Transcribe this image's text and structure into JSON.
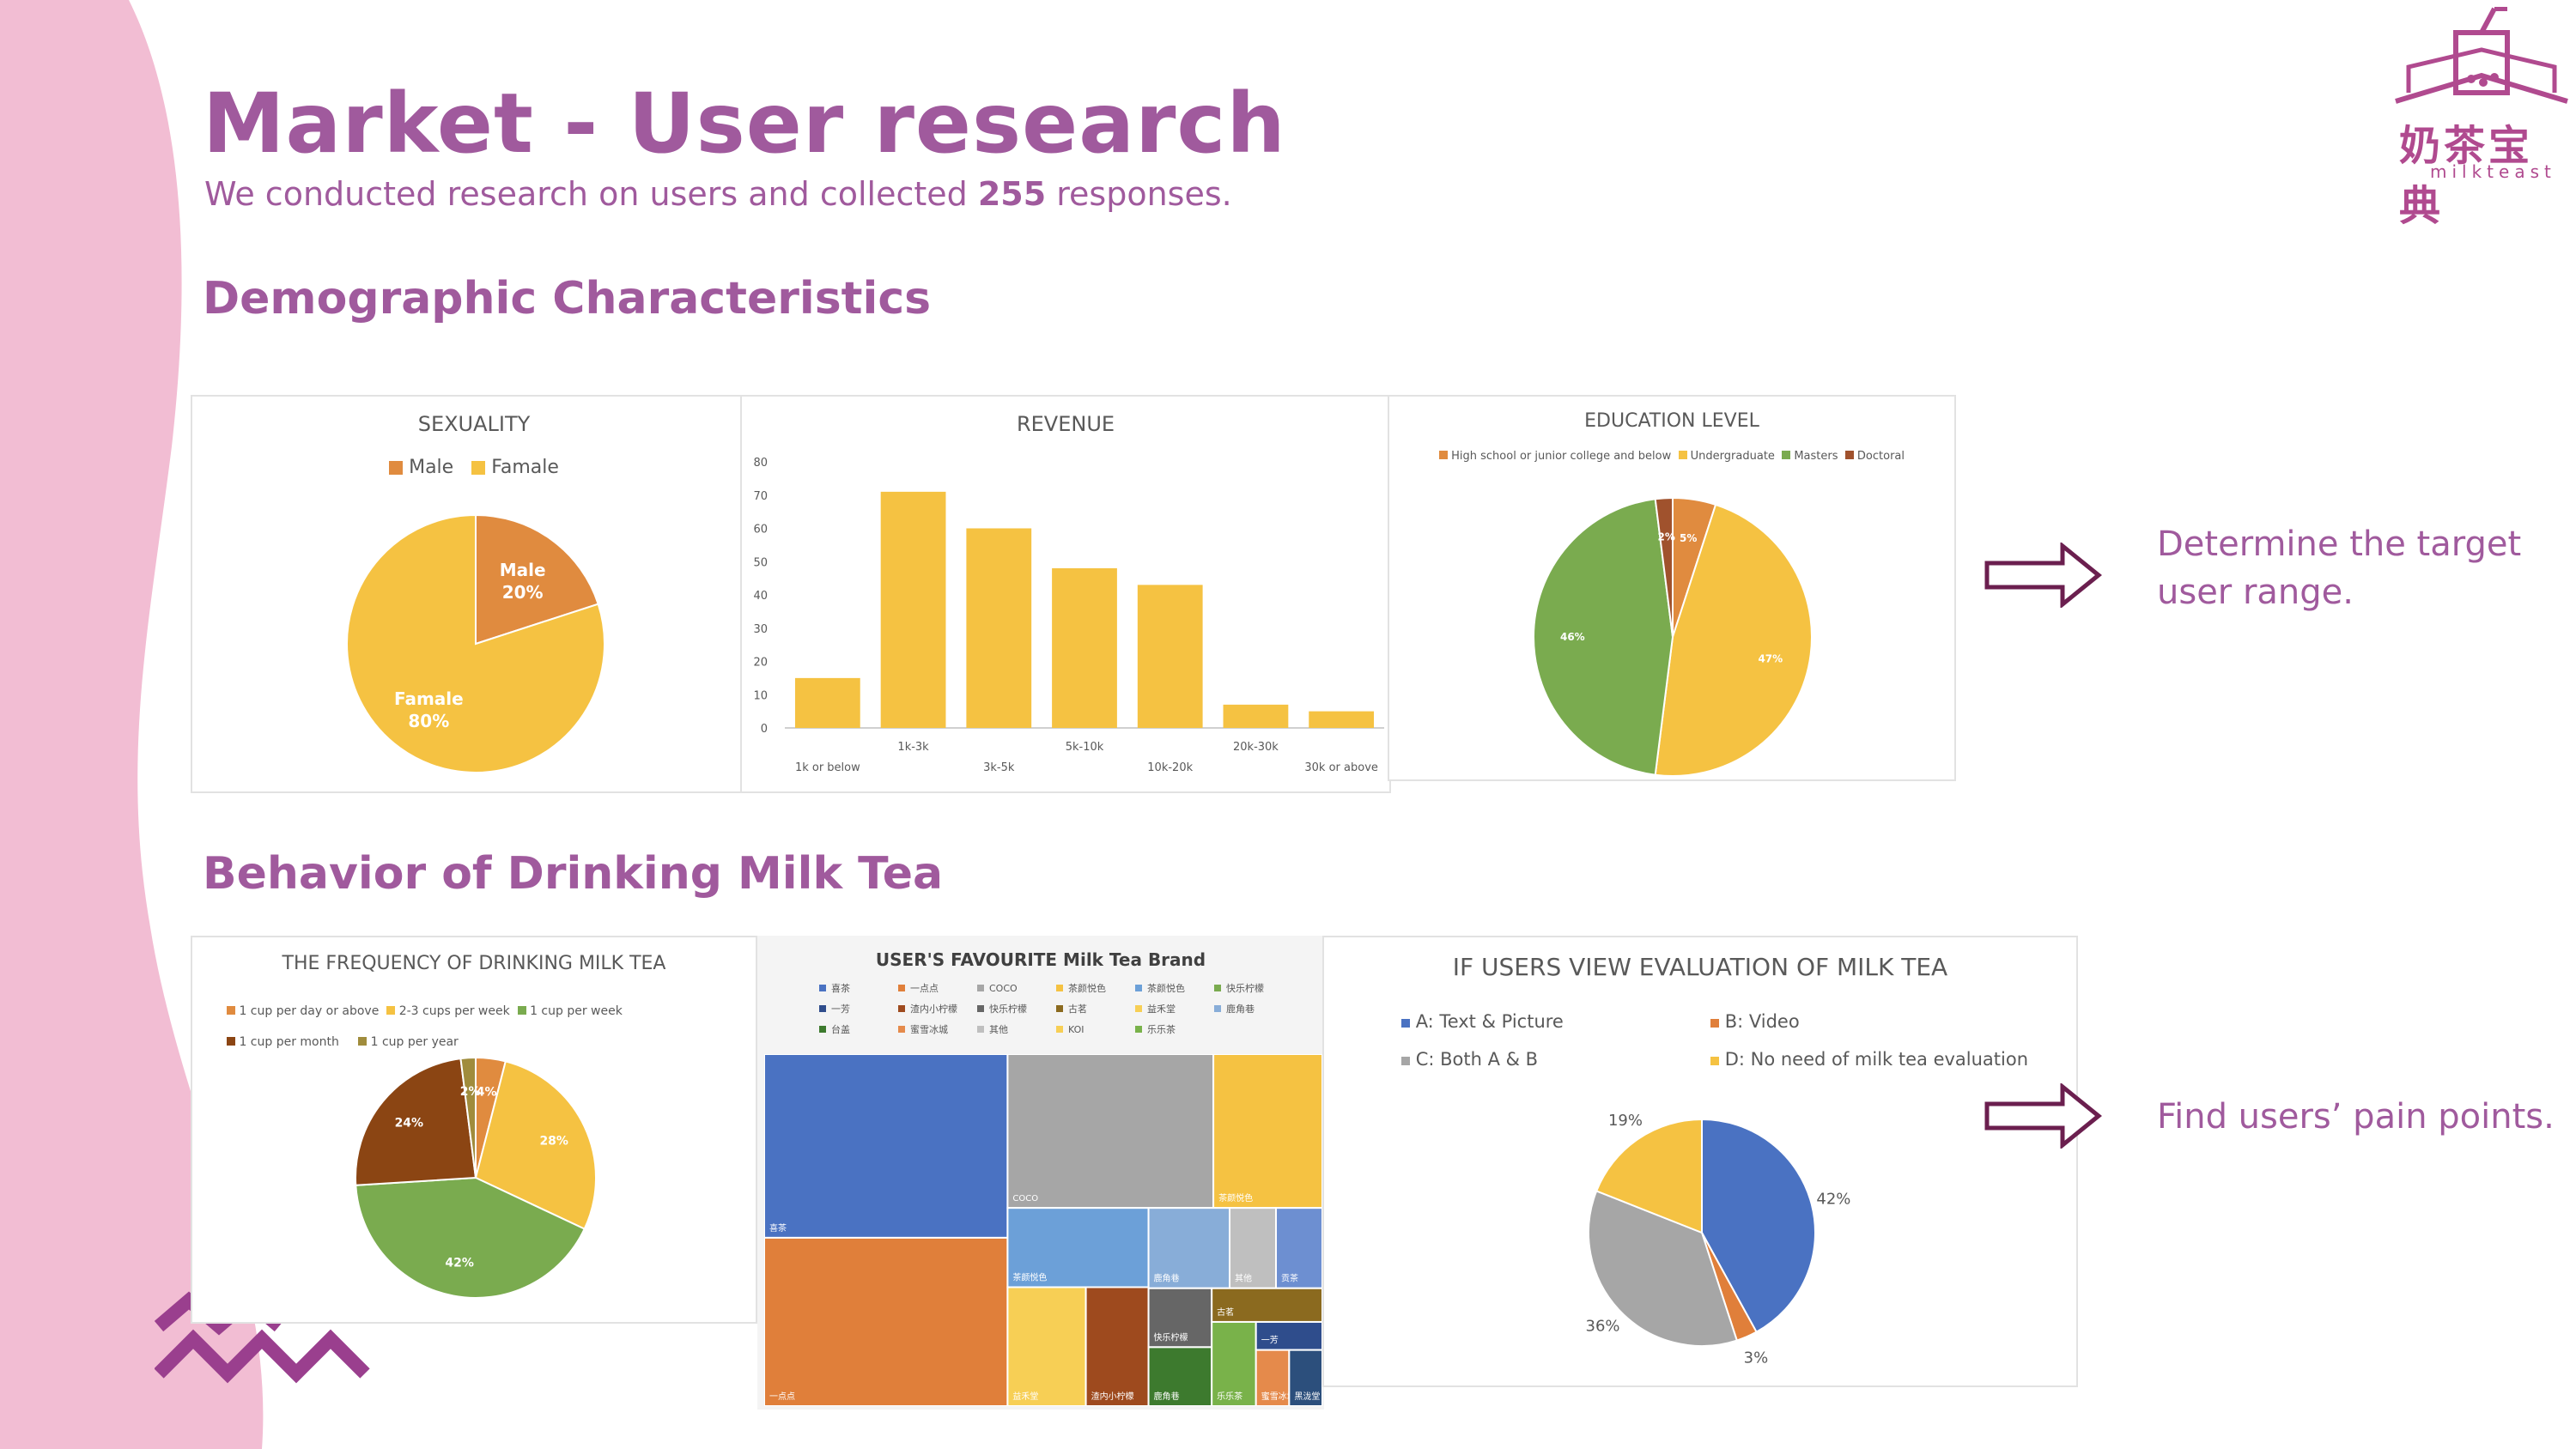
{
  "slide": {
    "title": "Market - User research",
    "subtitle_prefix": "We conducted research on users and collected ",
    "subtitle_count": "255",
    "subtitle_suffix": " responses.",
    "section1": "Demographic Characteristics",
    "section2": "Behavior of Drinking Milk Tea",
    "note1_line1": "Determine the target",
    "note1_line2": "user range.",
    "note2": "Find users’ pain points.",
    "logo_cn": "奶茶宝典",
    "logo_en": "milkteast",
    "colors": {
      "accent": "#a05a9d",
      "pink": "#f2bdd3"
    }
  },
  "chart_data": [
    {
      "type": "pie",
      "title": "SEXUALITY",
      "legend_position": "top",
      "slices": [
        {
          "name": "Male",
          "value": 20,
          "label": "20%",
          "color": "#e08b3f"
        },
        {
          "name": "Famale",
          "value": 80,
          "label": "80%",
          "color": "#f5c242"
        }
      ]
    },
    {
      "type": "bar",
      "title": "REVENUE",
      "categories": [
        "1k or below",
        "1k-3k",
        "3k-5k",
        "5k-10k",
        "10k-20k",
        "20k-30k",
        "30k or above"
      ],
      "values": [
        15,
        71,
        60,
        48,
        43,
        7,
        5
      ],
      "ylim": [
        0,
        80
      ],
      "yticks": [
        0,
        10,
        20,
        30,
        40,
        50,
        60,
        70,
        80
      ],
      "color": "#f5c242"
    },
    {
      "type": "pie",
      "title": "EDUCATION LEVEL",
      "legend_position": "top",
      "slices": [
        {
          "name": "High school or junior college and below",
          "value": 5,
          "label": "5%",
          "color": "#e08b3f"
        },
        {
          "name": "Undergraduate",
          "value": 47,
          "label": "47%",
          "color": "#f5c242"
        },
        {
          "name": "Masters",
          "value": 46,
          "label": "46%",
          "color": "#7aab4f"
        },
        {
          "name": "Doctoral",
          "value": 2,
          "label": "2%",
          "color": "#a0522d"
        }
      ]
    },
    {
      "type": "pie",
      "title": "THE FREQUENCY OF DRINKING MILK TEA",
      "legend_position": "top",
      "slices": [
        {
          "name": "1 cup per day or above",
          "value": 4,
          "label": "4%",
          "color": "#e08b3f"
        },
        {
          "name": "2-3 cups per week",
          "value": 28,
          "label": "28%",
          "color": "#f5c242"
        },
        {
          "name": "1 cup per week",
          "value": 42,
          "label": "42%",
          "color": "#7aab4f"
        },
        {
          "name": "1 cup per month",
          "value": 24,
          "label": "24%",
          "color": "#8b4513"
        },
        {
          "name": "1 cup per year",
          "value": 2,
          "label": "2%",
          "color": "#a08c3c"
        }
      ]
    },
    {
      "type": "treemap",
      "title": "USER'S FAVOURITE Milk Tea Brand",
      "legend_position": "top",
      "items": [
        {
          "name": "喜茶",
          "value": 48,
          "color": "#4a72c2",
          "label": "喜茶"
        },
        {
          "name": "一点点",
          "value": 44,
          "color": "#e07f3a",
          "label": "一点点"
        },
        {
          "name": "COCO",
          "value": 34,
          "color": "#a6a6a6",
          "label": "COCO"
        },
        {
          "name": "茶颜悦色",
          "value": 18,
          "color": "#f5c242",
          "label": "茶颜悦色"
        },
        {
          "name": "茶颜悦色",
          "value": 12,
          "color": "#6ca0d8",
          "label": "茶颜悦色"
        },
        {
          "name": "益禾堂",
          "value": 10,
          "color": "#f7cf55",
          "label": "益禾堂"
        },
        {
          "name": "渣内小柠檬",
          "value": 8,
          "color": "#9e4a1e",
          "label": "渣内小柠檬"
        },
        {
          "name": "鹿角巷",
          "value": 7,
          "color": "#88add8",
          "label": "鹿角巷"
        },
        {
          "name": "其他",
          "value": 4,
          "color": "#bfbfbf",
          "label": "其他"
        },
        {
          "name": "贡茶",
          "value": 4,
          "color": "#6d8fd1",
          "label": "贡茶"
        },
        {
          "name": "快乐柠檬",
          "value": 4,
          "color": "#666666",
          "label": "快乐柠檬"
        },
        {
          "name": "鹿角巷",
          "value": 4,
          "color": "#3d7a2e",
          "label": "鹿角巷"
        },
        {
          "name": "古茗",
          "value": 4,
          "color": "#8b6a1f",
          "label": "古茗"
        },
        {
          "name": "乐乐茶",
          "value": 4,
          "color": "#79b24a",
          "label": "乐乐茶"
        },
        {
          "name": "一芳",
          "value": 2,
          "color": "#2f4d8c",
          "label": "一芳"
        },
        {
          "name": "蜜雪冰城",
          "value": 2,
          "color": "#e58a4b",
          "label": "蜜雪冰城"
        },
        {
          "name": "黑泷堂",
          "value": 2,
          "color": "#2c4f7c",
          "label": "黑泷堂"
        }
      ],
      "legend": [
        "喜茶",
        "一点点",
        "COCO",
        "茶颜悦色",
        "茶颜悦色",
        "快乐柠檬",
        "一芳",
        "渣内小柠檬",
        "快乐柠檬",
        "古茗",
        "益禾堂",
        "鹿角巷",
        "台盖",
        "蜜雪冰城",
        "其他",
        "KOI",
        "乐乐茶"
      ]
    },
    {
      "type": "pie",
      "title": "IF USERS VIEW EVALUATION OF MILK TEA",
      "legend_position": "top",
      "slices": [
        {
          "name": "A: Text & Picture",
          "value": 42,
          "label": "42%",
          "color": "#4a72c2"
        },
        {
          "name": "B: Video",
          "value": 3,
          "label": "3%",
          "color": "#e07f3a"
        },
        {
          "name": "C: Both A & B",
          "value": 36,
          "label": "36%",
          "color": "#a6a6a6"
        },
        {
          "name": "D: No need of milk tea evaluation",
          "value": 19,
          "label": "19%",
          "color": "#f5c242"
        }
      ]
    }
  ]
}
